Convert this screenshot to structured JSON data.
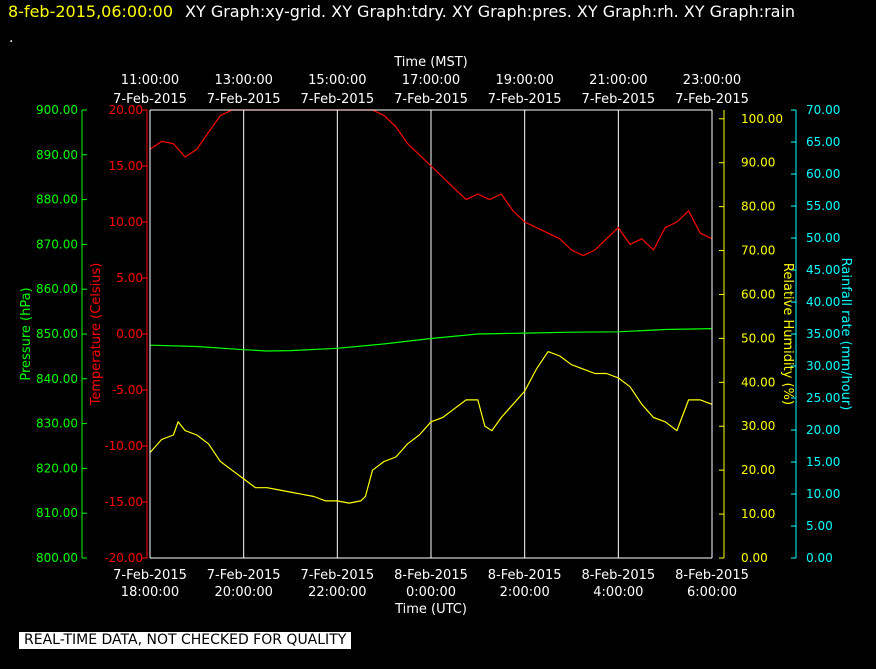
{
  "header": {
    "timestamp": "8-feb-2015,06:00:00",
    "titles": "XY Graph:xy-grid.  XY Graph:tdry.  XY Graph:pres.  XY Graph:rh.  XY Graph:rain",
    "dot": "."
  },
  "footer": {
    "quality_banner": "REAL-TIME DATA, NOT CHECKED FOR QUALITY"
  },
  "colors": {
    "pressure": "#00ff00",
    "temperature": "#ff0000",
    "humidity": "#ffff00",
    "rainfall": "#00ffff",
    "grid": "#ffffff",
    "background": "#000000"
  },
  "chart_data": {
    "type": "line",
    "top_axis": {
      "title": "Time (MST)",
      "ticks": [
        {
          "time": "11:00:00",
          "date": "7-Feb-2015"
        },
        {
          "time": "13:00:00",
          "date": "7-Feb-2015"
        },
        {
          "time": "15:00:00",
          "date": "7-Feb-2015"
        },
        {
          "time": "17:00:00",
          "date": "7-Feb-2015"
        },
        {
          "time": "19:00:00",
          "date": "7-Feb-2015"
        },
        {
          "time": "21:00:00",
          "date": "7-Feb-2015"
        },
        {
          "time": "23:00:00",
          "date": "7-Feb-2015"
        }
      ]
    },
    "bottom_axis": {
      "title": "Time (UTC)",
      "ticks": [
        {
          "date": "7-Feb-2015",
          "time": "18:00:00"
        },
        {
          "date": "7-Feb-2015",
          "time": "20:00:00"
        },
        {
          "date": "7-Feb-2015",
          "time": "22:00:00"
        },
        {
          "date": "8-Feb-2015",
          "time": "0:00:00"
        },
        {
          "date": "8-Feb-2015",
          "time": "2:00:00"
        },
        {
          "date": "8-Feb-2015",
          "time": "4:00:00"
        },
        {
          "date": "8-Feb-2015",
          "time": "6:00:00"
        }
      ]
    },
    "x_range_hours_utc": [
      18,
      30
    ],
    "y_axes": {
      "pressure": {
        "label": "Pressure (hPa)",
        "min": 800,
        "max": 900,
        "ticks": [
          "800.00",
          "810.00",
          "820.00",
          "830.00",
          "840.00",
          "850.00",
          "860.00",
          "870.00",
          "880.00",
          "890.00",
          "900.00"
        ]
      },
      "temperature": {
        "label": "Temperature (Celsius)",
        "min": -20,
        "max": 20,
        "ticks": [
          "-20.00",
          "-15.00",
          "-10.00",
          "-5.00",
          "0.00",
          "5.00",
          "10.00",
          "15.00",
          "20.00"
        ]
      },
      "humidity": {
        "label": "Relative Humidity (%)",
        "min": 0,
        "max": 102,
        "ticks": [
          "0.00",
          "10.00",
          "20.00",
          "30.00",
          "40.00",
          "50.00",
          "60.00",
          "70.00",
          "80.00",
          "90.00",
          "100.00"
        ]
      },
      "rainfall": {
        "label": "Rainfall rate (mm/hour)",
        "min": 0,
        "max": 70,
        "ticks": [
          "0.00",
          "5.00",
          "10.00",
          "15.00",
          "20.00",
          "25.00",
          "30.00",
          "35.00",
          "40.00",
          "45.00",
          "50.00",
          "55.00",
          "60.00",
          "65.00",
          "70.00"
        ]
      }
    },
    "series": [
      {
        "name": "tdry",
        "axis": "temperature",
        "x": [
          18,
          18.25,
          18.5,
          18.75,
          19,
          19.25,
          19.5,
          19.75,
          20,
          20.25,
          20.5,
          21,
          21.5,
          22,
          22.5,
          22.75,
          23,
          23.25,
          23.5,
          23.75,
          24,
          24.25,
          24.5,
          24.75,
          25,
          25.25,
          25.5,
          25.75,
          26,
          26.25,
          26.5,
          26.75,
          27,
          27.25,
          27.5,
          27.75,
          28,
          28.25,
          28.5,
          28.75,
          29,
          29.25,
          29.5,
          29.75,
          30
        ],
        "y": [
          16.5,
          17.2,
          17.0,
          15.8,
          16.5,
          18,
          19.5,
          21,
          20.5,
          21,
          21.5,
          22,
          22.2,
          22,
          21.5,
          20.5,
          19.5,
          18.5,
          17,
          16,
          15,
          14,
          13,
          12,
          12.5,
          12,
          12.5,
          11,
          10,
          9.5,
          9,
          8.5,
          7.5,
          7,
          7.5,
          8.5,
          9.5,
          8,
          8.5,
          7.5,
          9.5,
          10,
          11,
          9,
          8.5
        ]
      },
      {
        "name": "pres",
        "axis": "pressure",
        "x": [
          18,
          19,
          20,
          20.5,
          21,
          22,
          23,
          24,
          25,
          26,
          27,
          28,
          29,
          30
        ],
        "y": [
          847.5,
          847.2,
          846.5,
          846.2,
          846.3,
          846.8,
          847.8,
          849,
          850,
          850.2,
          850.4,
          850.5,
          851,
          851.2
        ]
      },
      {
        "name": "rh",
        "axis": "humidity",
        "x": [
          18,
          18.25,
          18.5,
          18.6,
          18.75,
          19,
          19.25,
          19.5,
          19.75,
          20,
          20.25,
          20.5,
          20.75,
          21,
          21.25,
          21.5,
          21.75,
          22,
          22.25,
          22.5,
          22.6,
          22.75,
          23,
          23.25,
          23.5,
          23.75,
          24,
          24.25,
          24.5,
          24.75,
          25,
          25.15,
          25.3,
          25.5,
          25.75,
          26,
          26.25,
          26.5,
          26.75,
          27,
          27.25,
          27.5,
          27.75,
          28,
          28.25,
          28.5,
          28.75,
          29,
          29.25,
          29.5,
          29.75,
          30
        ],
        "y": [
          24,
          27,
          28,
          31,
          29,
          28,
          26,
          22,
          20,
          18,
          16,
          16,
          15.5,
          15,
          14.5,
          14,
          13,
          13,
          12.5,
          13,
          14,
          20,
          22,
          23,
          26,
          28,
          31,
          32,
          34,
          36,
          36,
          30,
          29,
          32,
          35,
          38,
          43,
          47,
          46,
          44,
          43,
          42,
          42,
          41,
          39,
          35,
          32,
          31,
          29,
          36,
          36,
          35
        ]
      }
    ]
  }
}
